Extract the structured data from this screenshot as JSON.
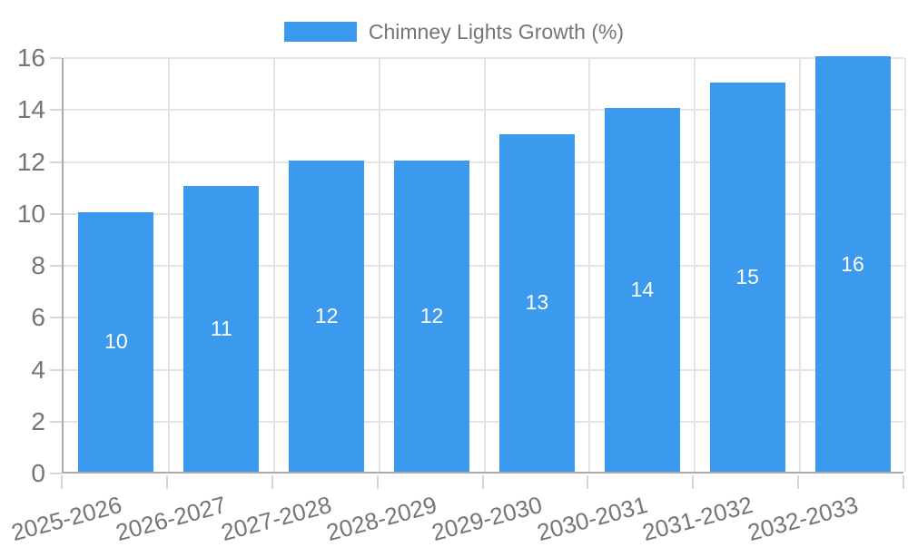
{
  "chart_data": {
    "type": "bar",
    "title": "Chimney Lights Growth (%)",
    "legend_label": "Chimney Lights Growth (%)",
    "legend_position": "top",
    "categories": [
      "2025-2026",
      "2026-2027",
      "2027-2028",
      "2028-2029",
      "2029-2030",
      "2030-2031",
      "2031-2032",
      "2032-2033"
    ],
    "values": [
      10,
      11,
      12,
      12,
      13,
      14,
      15,
      16
    ],
    "xlabel": "",
    "ylabel": "",
    "ylim": [
      0,
      16
    ],
    "yticks": [
      0,
      2,
      4,
      6,
      8,
      10,
      12,
      14,
      16
    ],
    "grid": true,
    "bar_value_labels_visible": true,
    "x_label_rotation_deg": -15,
    "colors": {
      "bar": "#3B9AED",
      "bar_value_text": "#FFFFFF",
      "axis_text": "#757575",
      "gridline": "#E4E4E4",
      "axis_line": "#ACACAC",
      "tick": "#D6D6D6",
      "background": "#FFFFFF"
    }
  }
}
